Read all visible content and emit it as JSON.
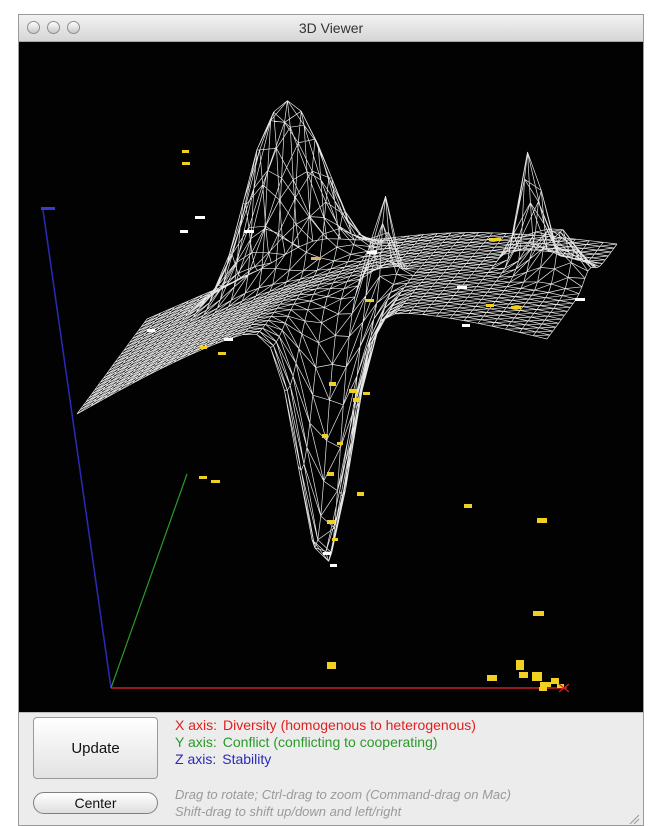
{
  "window": {
    "title": "3D Viewer"
  },
  "axes": {
    "x": {
      "name": "X axis:",
      "label": "Diversity (homogenous to heterogenous)",
      "color": "#e02020"
    },
    "y": {
      "name": "Y axis:",
      "label": "Conflict (conflicting to cooperating)",
      "color": "#2a9a2a"
    },
    "z": {
      "name": "Z axis:",
      "label": "Stability",
      "color": "#2a2ab8"
    }
  },
  "buttons": {
    "update": "Update",
    "center": "Center"
  },
  "hints": {
    "line1": "Drag to rotate; Ctrl-drag to zoom (Command-drag on Mac)",
    "line2": "Shift-drag to shift up/down and left/right"
  },
  "scene": {
    "background": "#020202",
    "mesh_color": "#ffffff",
    "point_colors": [
      "#f0d020",
      "#ffffff",
      "#e0b070"
    ],
    "icons": [
      "close-traffic-light",
      "minimize-traffic-light",
      "zoom-traffic-light",
      "resize-grip-icon"
    ]
  }
}
